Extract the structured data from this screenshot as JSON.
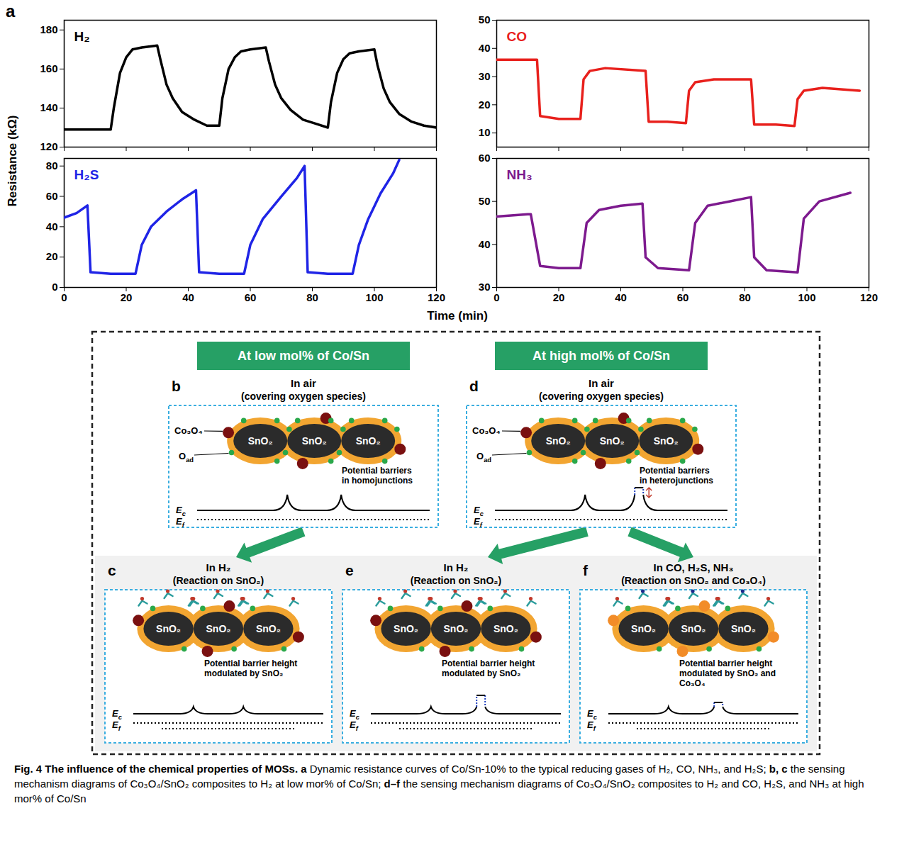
{
  "panel_a": {
    "label": "a",
    "ylabel": "Resistance (kΩ)",
    "xlabel": "Time (min)"
  },
  "chart_data": [
    {
      "type": "line",
      "title": "H₂",
      "color": "#000000",
      "x": [
        0,
        15,
        16,
        18,
        20,
        22,
        25,
        30,
        31,
        33,
        35,
        38,
        42,
        46,
        50,
        51,
        53,
        55,
        57,
        60,
        65,
        66,
        68,
        70,
        73,
        77,
        81,
        85,
        86,
        88,
        90,
        92,
        95,
        100,
        101,
        103,
        105,
        108,
        112,
        116,
        120
      ],
      "values": [
        129,
        129,
        140,
        158,
        166,
        170,
        171,
        172,
        165,
        152,
        145,
        138,
        134,
        131,
        131,
        145,
        160,
        166,
        169,
        170,
        171,
        164,
        152,
        145,
        139,
        134,
        132,
        130,
        143,
        158,
        165,
        168,
        169,
        170,
        162,
        150,
        143,
        137,
        133,
        131,
        130
      ],
      "xlim": [
        0,
        120
      ],
      "ylim": [
        120,
        185
      ],
      "xticks": [
        0,
        20,
        40,
        60,
        80,
        100,
        120
      ],
      "yticks": [
        120,
        140,
        160,
        180
      ],
      "tick_labels": "y"
    },
    {
      "type": "line",
      "title": "H₂S",
      "color": "#1f24e6",
      "x": [
        0,
        4,
        7.5,
        8.5,
        15,
        23,
        25,
        28,
        33,
        38,
        42.5,
        43.5,
        50,
        58,
        60,
        64,
        70,
        75,
        77.5,
        78.5,
        85,
        93,
        95,
        98,
        102,
        106,
        108
      ],
      "values": [
        46,
        49,
        54,
        10,
        9,
        9,
        28,
        40,
        50,
        58,
        64,
        10,
        9,
        9,
        28,
        45,
        60,
        72,
        80,
        10,
        9,
        9,
        28,
        45,
        62,
        75,
        84
      ],
      "xlim": [
        0,
        120
      ],
      "ylim": [
        0,
        85
      ],
      "xticks": [
        0,
        20,
        40,
        60,
        80,
        100,
        120
      ],
      "yticks": [
        0,
        20,
        40,
        60,
        80
      ]
    },
    {
      "type": "line",
      "title": "CO",
      "color": "#e8201c",
      "x": [
        0,
        13,
        14,
        20,
        27,
        28,
        30,
        35,
        48,
        49,
        55,
        61,
        62,
        64,
        70,
        82,
        83,
        90,
        96,
        97,
        99,
        105,
        117
      ],
      "values": [
        36,
        36,
        16,
        15,
        15,
        29,
        32,
        33,
        32,
        14,
        14,
        13.5,
        25,
        28,
        29,
        29,
        13,
        13,
        12.5,
        22,
        25,
        26,
        25
      ],
      "xlim": [
        0,
        120
      ],
      "ylim": [
        5,
        50
      ],
      "xticks": [
        0,
        20,
        40,
        60,
        80,
        100,
        120
      ],
      "yticks": [
        10,
        20,
        30,
        40,
        50
      ],
      "tick_labels": "y"
    },
    {
      "type": "line",
      "title": "NH₃",
      "color": "#7d1a8e",
      "x": [
        0,
        10,
        11,
        14,
        20,
        27,
        29,
        33,
        40,
        47,
        48,
        52,
        62,
        64,
        68,
        75,
        82,
        83,
        87,
        97,
        99,
        104,
        114
      ],
      "values": [
        46.5,
        47,
        47,
        35,
        34.5,
        34.5,
        45,
        48,
        49,
        49.5,
        37,
        34.5,
        34,
        45,
        49,
        50,
        51,
        37,
        34,
        33.5,
        46,
        50,
        52
      ],
      "xlim": [
        0,
        120
      ],
      "ylim": [
        30,
        60
      ],
      "xticks": [
        0,
        20,
        40,
        60,
        80,
        100,
        120
      ],
      "yticks": [
        30,
        40,
        50,
        60
      ]
    }
  ],
  "diagram": {
    "headers": [
      "At low mol% of Co/Sn",
      "At high mol% of Co/Sn"
    ],
    "grain_label": "SnO₂",
    "callouts": {
      "co3o4": "Co₃O₄",
      "o_ad": [
        "O",
        "ad"
      ]
    },
    "energy_levels": [
      [
        "E",
        "c"
      ],
      [
        "E",
        "f"
      ]
    ],
    "panels": [
      {
        "label": "b",
        "title": "In air",
        "subtitle": "(covering oxygen species)",
        "note": "Potential barriers in homojunctions"
      },
      {
        "label": "c",
        "title": "In H₂",
        "subtitle": "(Reaction on SnO₂)",
        "note": "Potential barrier height modulated by SnO₂"
      },
      {
        "label": "d",
        "title": "In air",
        "subtitle": "(covering oxygen species)",
        "note": "Potential barriers in heterojunctions"
      },
      {
        "label": "e",
        "title": "In H₂",
        "subtitle": "(Reaction on SnO₂)",
        "note": "Potential barrier height modulated by SnO₂"
      },
      {
        "label": "f",
        "title": "In CO, H₂S, NH₃",
        "subtitle": "(Reaction on SnO₂ and Co₃O₄)",
        "note": "Potential barrier height modulated by SnO₂ and Co₃O₄"
      }
    ]
  },
  "caption": {
    "title": "Fig. 4 The influence of the chemical properties of MOSs.",
    "parts": [
      {
        "label": "a",
        "text": "Dynamic resistance curves of Co/Sn-10% to the typical reducing gases of H₂, CO, NH₃, and H₂S;"
      },
      {
        "label": "b, c",
        "text": "the sensing mechanism diagrams of Co₃O₄/SnO₂ composites to H₂ at low mor% of Co/Sn;"
      },
      {
        "label": "d–f",
        "text": "the sensing mechanism diagrams of Co₃O₄/SnO₂ composites to H₂ and CO, H₂S, and NH₃ at high mor% of Co/Sn"
      }
    ]
  }
}
